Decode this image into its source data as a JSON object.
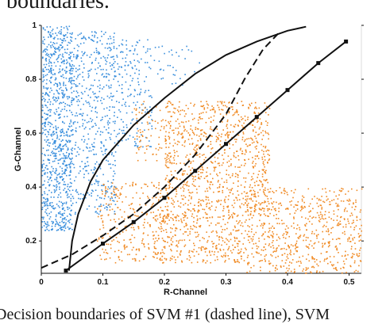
{
  "page": {
    "heading_fragment": "boundaries.",
    "caption_fragment": "Decision boundaries of SVM #1 (dashed line), SVM"
  },
  "chart_data": {
    "type": "scatter",
    "title": "",
    "xlabel": "R-Channel",
    "ylabel": "G-Channel",
    "xlim": [
      0,
      0.52
    ],
    "ylim": [
      0.08,
      1.0
    ],
    "x_ticks": [
      0,
      0.1,
      0.2,
      0.3,
      0.4,
      0.5
    ],
    "y_ticks": [
      0.2,
      0.4,
      0.6,
      0.8,
      1
    ],
    "x_tick_labels": [
      "0",
      "0.1",
      "0.2",
      "0.3",
      "0.4",
      "0.5"
    ],
    "y_tick_labels": [
      "0.2",
      "0.4",
      "0.6",
      "0.8",
      "1"
    ],
    "grid": false,
    "legend": "none",
    "colors": {
      "blue": "#3a8fdd",
      "orange": "#f08a24",
      "line": "#111111"
    },
    "scatter_clusters": [
      {
        "color": "blue",
        "x_range": [
          0.0,
          0.05
        ],
        "y_range": [
          0.24,
          1.0
        ],
        "density": 900
      },
      {
        "color": "blue",
        "x_range": [
          0.05,
          0.12
        ],
        "y_range": [
          0.3,
          0.98
        ],
        "density": 500
      },
      {
        "color": "blue",
        "x_range": [
          0.12,
          0.18
        ],
        "y_range": [
          0.55,
          0.95
        ],
        "density": 180
      },
      {
        "color": "blue",
        "x_range": [
          0.18,
          0.26
        ],
        "y_range": [
          0.78,
          0.93
        ],
        "density": 35
      },
      {
        "color": "orange",
        "x_range": [
          0.09,
          0.2
        ],
        "y_range": [
          0.12,
          0.42
        ],
        "density": 260
      },
      {
        "color": "orange",
        "x_range": [
          0.15,
          0.21
        ],
        "y_range": [
          0.5,
          0.72
        ],
        "density": 70
      },
      {
        "color": "orange",
        "x_range": [
          0.2,
          0.37
        ],
        "y_range": [
          0.3,
          0.72
        ],
        "density": 900
      },
      {
        "color": "orange",
        "x_range": [
          0.18,
          0.33
        ],
        "y_range": [
          0.12,
          0.3
        ],
        "density": 350
      },
      {
        "color": "orange",
        "x_range": [
          0.33,
          0.52
        ],
        "y_range": [
          0.08,
          0.4
        ],
        "density": 650
      }
    ],
    "boundaries": [
      {
        "style": "dashed",
        "points": [
          [
            0.0,
            0.1
          ],
          [
            0.05,
            0.15
          ],
          [
            0.1,
            0.22
          ],
          [
            0.15,
            0.3
          ],
          [
            0.2,
            0.4
          ],
          [
            0.25,
            0.52
          ],
          [
            0.3,
            0.67
          ],
          [
            0.33,
            0.8
          ],
          [
            0.36,
            0.91
          ],
          [
            0.385,
            0.97
          ]
        ]
      },
      {
        "style": "solid",
        "points": [
          [
            0.045,
            0.09
          ],
          [
            0.05,
            0.2
          ],
          [
            0.06,
            0.3
          ],
          [
            0.08,
            0.42
          ],
          [
            0.1,
            0.5
          ],
          [
            0.15,
            0.63
          ],
          [
            0.2,
            0.73
          ],
          [
            0.25,
            0.82
          ],
          [
            0.3,
            0.89
          ],
          [
            0.35,
            0.94
          ],
          [
            0.4,
            0.98
          ],
          [
            0.43,
            0.995
          ]
        ]
      },
      {
        "style": "marked",
        "points": [
          [
            0.04,
            0.09
          ],
          [
            0.1,
            0.19
          ],
          [
            0.15,
            0.27
          ],
          [
            0.2,
            0.36
          ],
          [
            0.25,
            0.46
          ],
          [
            0.3,
            0.56
          ],
          [
            0.35,
            0.66
          ],
          [
            0.4,
            0.76
          ],
          [
            0.45,
            0.86
          ],
          [
            0.495,
            0.94
          ]
        ]
      }
    ]
  }
}
